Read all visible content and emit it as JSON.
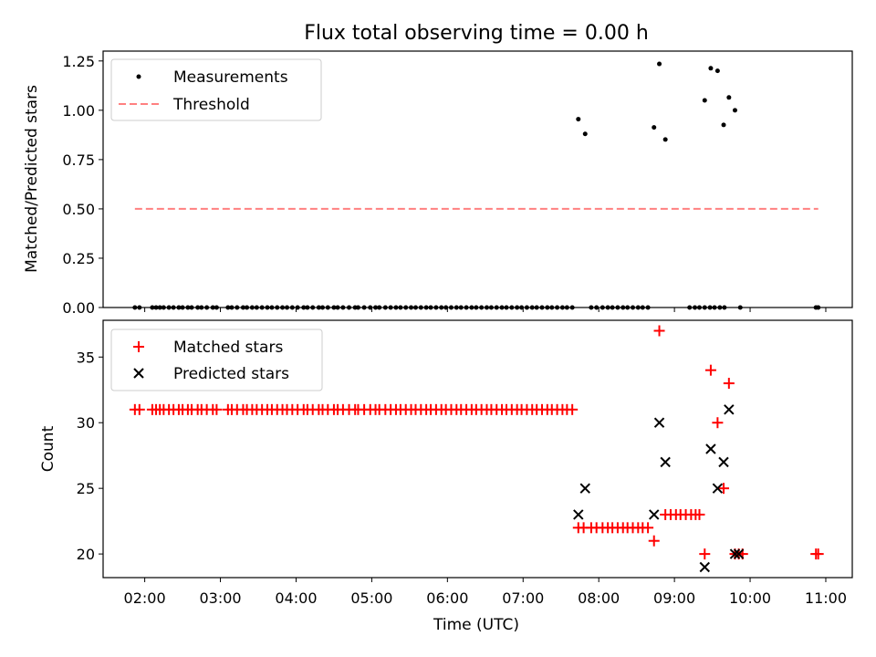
{
  "title": "Flux total observing time = 0.00 h",
  "x_axis": {
    "label": "Time (UTC)",
    "ticks": [
      {
        "value": 2.0,
        "label": "02:00"
      },
      {
        "value": 3.0,
        "label": "03:00"
      },
      {
        "value": 4.0,
        "label": "04:00"
      },
      {
        "value": 5.0,
        "label": "05:00"
      },
      {
        "value": 6.0,
        "label": "06:00"
      },
      {
        "value": 7.0,
        "label": "07:00"
      },
      {
        "value": 8.0,
        "label": "08:00"
      },
      {
        "value": 9.0,
        "label": "09:00"
      },
      {
        "value": 10.0,
        "label": "10:00"
      },
      {
        "value": 11.0,
        "label": "11:00"
      }
    ],
    "range_hours": [
      1.45,
      11.35
    ]
  },
  "chart_data": [
    {
      "type": "scatter",
      "panel": "top",
      "ylabel": "Matched/Predicted stars",
      "ylim": [
        0,
        1.3
      ],
      "yticks": [
        {
          "value": 0.0,
          "label": "0.00"
        },
        {
          "value": 0.25,
          "label": "0.25"
        },
        {
          "value": 0.5,
          "label": "0.50"
        },
        {
          "value": 0.75,
          "label": "0.75"
        },
        {
          "value": 1.0,
          "label": "1.00"
        },
        {
          "value": 1.25,
          "label": "1.25"
        }
      ],
      "legend": {
        "location": "upper left",
        "entries": [
          "Measurements",
          "Threshold"
        ]
      },
      "series": [
        {
          "name": "Measurements",
          "kind": "points",
          "color": "#000000",
          "zero_times": [
            1.87,
            1.93,
            2.1,
            2.15,
            2.2,
            2.25,
            2.32,
            2.38,
            2.45,
            2.5,
            2.57,
            2.62,
            2.7,
            2.75,
            2.82,
            2.9,
            2.95,
            3.1,
            3.15,
            3.22,
            3.3,
            3.35,
            3.42,
            3.48,
            3.55,
            3.62,
            3.68,
            3.75,
            3.82,
            3.88,
            3.95,
            4.02,
            4.1,
            4.15,
            4.22,
            4.3,
            4.35,
            4.42,
            4.5,
            4.55,
            4.62,
            4.7,
            4.78,
            4.82,
            4.9,
            4.98,
            5.05,
            5.1,
            5.18,
            5.25,
            5.32,
            5.38,
            5.45,
            5.52,
            5.58,
            5.65,
            5.72,
            5.78,
            5.85,
            5.92,
            5.98,
            6.05,
            6.12,
            6.18,
            6.25,
            6.32,
            6.38,
            6.45,
            6.52,
            6.58,
            6.65,
            6.72,
            6.78,
            6.85,
            6.92,
            6.98,
            7.05,
            7.12,
            7.18,
            7.25,
            7.32,
            7.38,
            7.45,
            7.52,
            7.58,
            7.65,
            7.9,
            7.97,
            8.05,
            8.12,
            8.18,
            8.25,
            8.32,
            8.38,
            8.45,
            8.52,
            8.58,
            8.65,
            9.2,
            9.27,
            9.33,
            9.4,
            9.47,
            9.53,
            9.6,
            9.66,
            9.87,
            10.87,
            10.9
          ],
          "points": [
            {
              "x": 7.73,
              "y": 0.955
            },
            {
              "x": 7.82,
              "y": 0.88
            },
            {
              "x": 8.73,
              "y": 0.913
            },
            {
              "x": 8.8,
              "y": 1.235
            },
            {
              "x": 8.88,
              "y": 0.852
            },
            {
              "x": 9.4,
              "y": 1.05
            },
            {
              "x": 9.48,
              "y": 1.213
            },
            {
              "x": 9.57,
              "y": 1.2
            },
            {
              "x": 9.65,
              "y": 0.926
            },
            {
              "x": 9.72,
              "y": 1.065
            },
            {
              "x": 9.8,
              "y": 1.0
            }
          ]
        },
        {
          "name": "Threshold",
          "kind": "line",
          "style": "dashed",
          "color": "#ff8080",
          "y": 0.5,
          "x_range": [
            1.87,
            10.9
          ]
        }
      ]
    },
    {
      "type": "scatter",
      "panel": "bottom",
      "ylabel": "Count",
      "ylim": [
        18.2,
        37.8
      ],
      "yticks": [
        {
          "value": 20,
          "label": "20"
        },
        {
          "value": 25,
          "label": "25"
        },
        {
          "value": 30,
          "label": "30"
        },
        {
          "value": 35,
          "label": "35"
        }
      ],
      "legend": {
        "location": "upper left",
        "entries": [
          "Matched stars",
          "Predicted stars"
        ]
      },
      "series": [
        {
          "name": "Matched stars",
          "marker": "plus",
          "color": "#ff0000",
          "groups": [
            {
              "y": 31,
              "x": [
                1.87,
                1.93,
                2.1,
                2.15,
                2.2,
                2.25,
                2.32,
                2.38,
                2.45,
                2.5,
                2.57,
                2.62,
                2.7,
                2.75,
                2.82,
                2.9,
                2.95,
                3.1,
                3.15,
                3.22,
                3.3,
                3.35,
                3.42,
                3.48,
                3.55,
                3.62,
                3.68,
                3.75,
                3.82,
                3.88,
                3.95,
                4.02,
                4.1,
                4.15,
                4.22,
                4.3,
                4.35,
                4.42,
                4.5,
                4.55,
                4.62,
                4.7,
                4.78,
                4.82,
                4.9,
                4.98,
                5.05,
                5.1,
                5.18,
                5.25,
                5.32,
                5.38,
                5.45,
                5.52,
                5.58,
                5.65,
                5.72,
                5.78,
                5.85,
                5.92,
                5.98,
                6.05,
                6.12,
                6.18,
                6.25,
                6.32,
                6.38,
                6.45,
                6.52,
                6.58,
                6.65,
                6.72,
                6.78,
                6.85,
                6.92,
                6.98,
                7.05,
                7.12,
                7.18,
                7.25,
                7.32,
                7.38,
                7.45,
                7.52,
                7.58,
                7.65
              ]
            },
            {
              "y": 22,
              "x": [
                7.73,
                7.8,
                7.9,
                7.97,
                8.05,
                8.12,
                8.18,
                8.25,
                8.32,
                8.38,
                8.45,
                8.52,
                8.58,
                8.65
              ]
            },
            {
              "y": 23,
              "x": [
                8.88,
                8.95,
                9.02,
                9.08,
                9.15,
                9.22,
                9.28,
                9.33
              ]
            },
            {
              "y": 20,
              "x": [
                9.4,
                9.8,
                9.85,
                9.9,
                10.87,
                10.9
              ]
            },
            {
              "y": 21,
              "x": [
                8.73
              ]
            },
            {
              "y": 37,
              "x": [
                8.8
              ]
            },
            {
              "y": 34,
              "x": [
                9.48
              ]
            },
            {
              "y": 30,
              "x": [
                9.57
              ]
            },
            {
              "y": 25,
              "x": [
                9.65
              ]
            },
            {
              "y": 33,
              "x": [
                9.72
              ]
            }
          ]
        },
        {
          "name": "Predicted stars",
          "marker": "x",
          "color": "#000000",
          "points": [
            {
              "x": 7.73,
              "y": 23
            },
            {
              "x": 7.82,
              "y": 25
            },
            {
              "x": 8.73,
              "y": 23
            },
            {
              "x": 8.8,
              "y": 30
            },
            {
              "x": 8.88,
              "y": 27
            },
            {
              "x": 9.4,
              "y": 19
            },
            {
              "x": 9.48,
              "y": 28
            },
            {
              "x": 9.57,
              "y": 25
            },
            {
              "x": 9.65,
              "y": 27
            },
            {
              "x": 9.72,
              "y": 31
            },
            {
              "x": 9.8,
              "y": 20
            },
            {
              "x": 9.85,
              "y": 20
            }
          ]
        }
      ]
    }
  ]
}
